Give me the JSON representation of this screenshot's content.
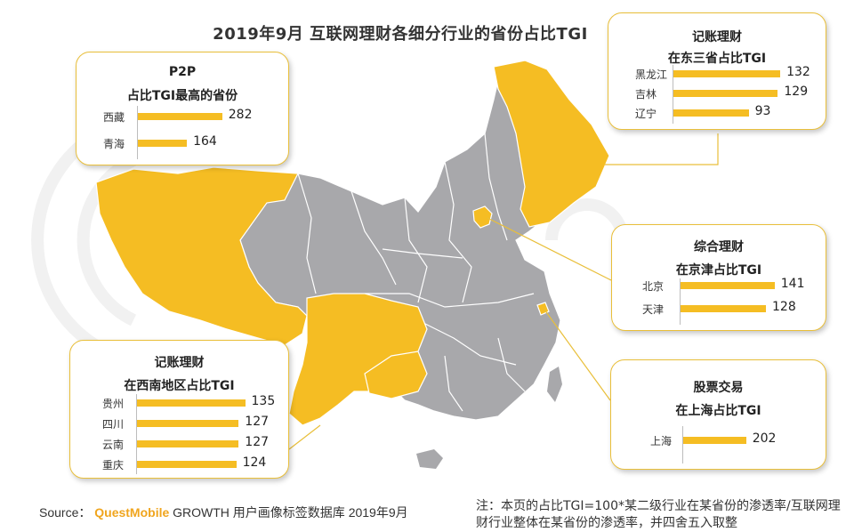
{
  "title": "2019年9月 互联网理财各细分行业的省份占比TGI",
  "footer": {
    "source_label": "Source：",
    "brand": "QuestMobile",
    "source_text": "GROWTH 用户画像标签数据库 2019年9月",
    "note": "注：本页的占比TGI=100*某二级行业在某省份的渗透率/互联网理财行业整体在某省份的渗透率，并四舍五入取整"
  },
  "colors": {
    "highlight": "#f5bd23",
    "map_gray": "#a8a8ab",
    "card_border": "#e9bf3a",
    "brand": "#f0a51e"
  },
  "chart_data": [
    {
      "type": "bar",
      "title": "P2P",
      "subtitle": "占比TGI最高的省份",
      "categories": [
        "西藏",
        "青海"
      ],
      "values": [
        282,
        164
      ]
    },
    {
      "type": "bar",
      "title": "记账理财",
      "subtitle": "在东三省占比TGI",
      "categories": [
        "黑龙江",
        "吉林",
        "辽宁"
      ],
      "values": [
        132,
        129,
        93
      ]
    },
    {
      "type": "bar",
      "title": "综合理财",
      "subtitle": "在京津占比TGI",
      "categories": [
        "北京",
        "天津"
      ],
      "values": [
        141,
        128
      ]
    },
    {
      "type": "bar",
      "title": "记账理财",
      "subtitle": "在西南地区占比TGI",
      "categories": [
        "贵州",
        "四川",
        "云南",
        "重庆"
      ],
      "values": [
        135,
        127,
        127,
        124
      ]
    },
    {
      "type": "bar",
      "title": "股票交易",
      "subtitle": "在上海占比TGI",
      "categories": [
        "上海"
      ],
      "values": [
        202
      ]
    }
  ]
}
